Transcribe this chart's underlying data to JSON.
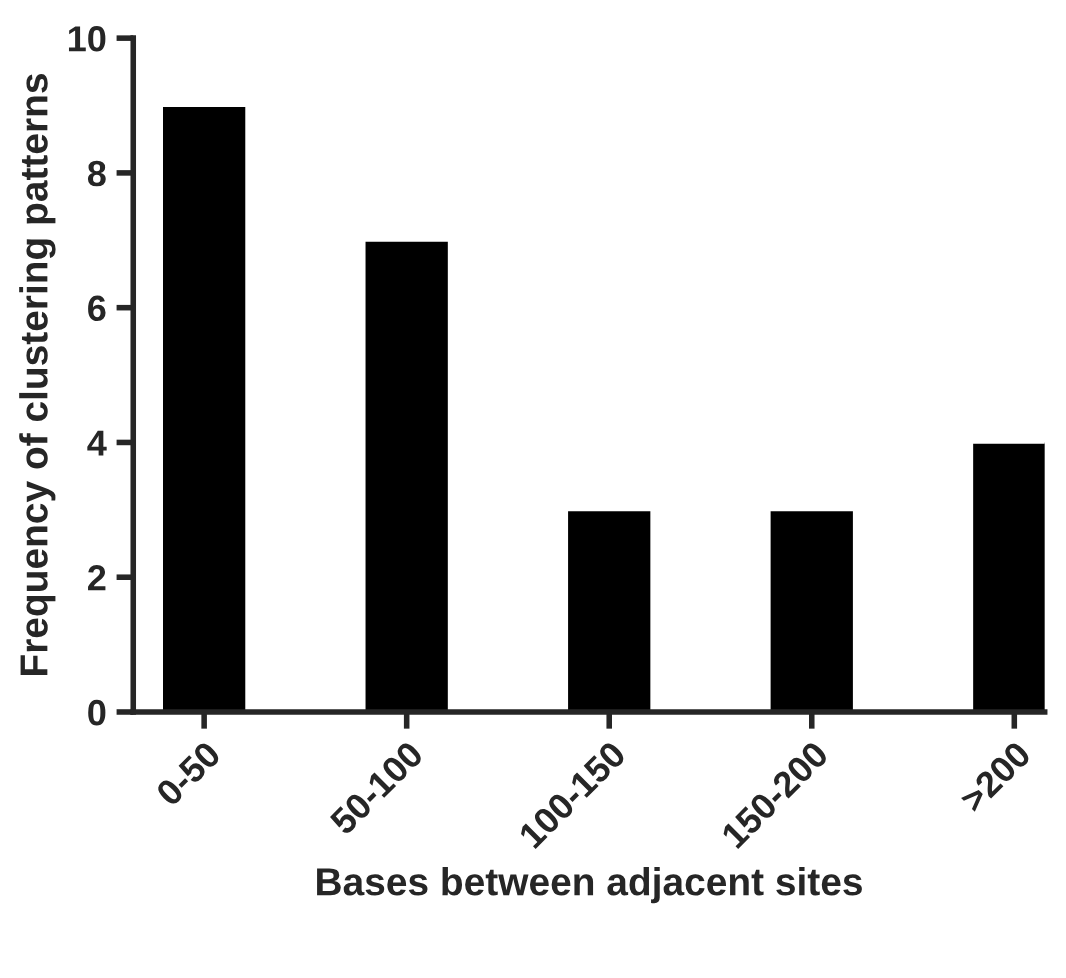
{
  "chart_data": {
    "type": "bar",
    "xlabel": "Bases between adjacent sites",
    "ylabel": "Frequency of clustering patterns",
    "categories": [
      "0-50",
      "50-100",
      "100-150",
      "150-200",
      ">200"
    ],
    "values": [
      9,
      7,
      3,
      3,
      4
    ],
    "color": "#000000",
    "ylim": [
      0,
      10
    ],
    "yticks": [
      0,
      2,
      4,
      6,
      8,
      10
    ],
    "grid": false,
    "legend": false
  }
}
